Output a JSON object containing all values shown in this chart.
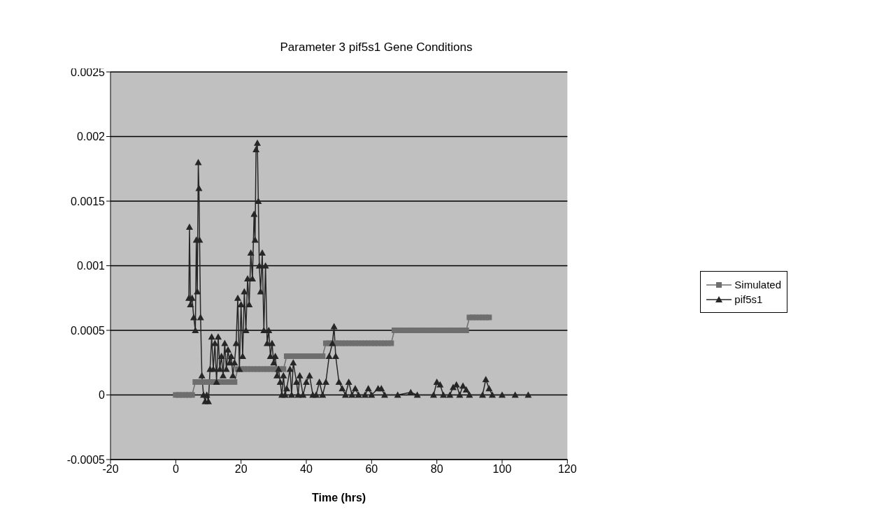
{
  "chart_data": {
    "type": "line",
    "title": "Parameter 3 pif5s1 Gene Conditions",
    "xlabel": "Time (hrs)",
    "xlim": [
      -20,
      120
    ],
    "xticks": [
      -20,
      0,
      20,
      40,
      60,
      80,
      100,
      120
    ],
    "ylim": [
      -0.0005,
      0.0025
    ],
    "yticks": [
      -0.0005,
      0,
      0.0005,
      0.001,
      0.0015,
      0.002,
      0.0025
    ],
    "grid": "y",
    "legend": "right",
    "series": [
      {
        "name": "Simulated",
        "color": "#6e6e6e",
        "marker": "square",
        "x": [
          0,
          1,
          2,
          3,
          4,
          5,
          6,
          7,
          8,
          9,
          10,
          11,
          12,
          13,
          14,
          15,
          16,
          17,
          18,
          19,
          20,
          21,
          22,
          23,
          24,
          25,
          26,
          27,
          28,
          29,
          30,
          31,
          32,
          33,
          34,
          35,
          36,
          37,
          38,
          39,
          40,
          41,
          42,
          43,
          44,
          45,
          46,
          47,
          48,
          49,
          50,
          51,
          52,
          53,
          54,
          55,
          56,
          57,
          58,
          59,
          60,
          61,
          62,
          63,
          64,
          65,
          66,
          67,
          68,
          69,
          70,
          71,
          72,
          73,
          74,
          75,
          76,
          77,
          78,
          79,
          80,
          81,
          82,
          83,
          84,
          85,
          86,
          87,
          88,
          89,
          90,
          91,
          92,
          93,
          94,
          95,
          96
        ],
        "values": [
          0,
          0,
          0,
          0,
          0,
          0,
          0.0001,
          0.0001,
          0.0001,
          0.0001,
          0.0001,
          0.0001,
          0.0001,
          0.0001,
          0.0001,
          0.0001,
          0.0001,
          0.0001,
          0.0001,
          0.0002,
          0.0002,
          0.0002,
          0.0002,
          0.0002,
          0.0002,
          0.0002,
          0.0002,
          0.0002,
          0.0002,
          0.0002,
          0.0002,
          0.0002,
          0.0002,
          0.0002,
          0.0003,
          0.0003,
          0.0003,
          0.0003,
          0.0003,
          0.0003,
          0.0003,
          0.0003,
          0.0003,
          0.0003,
          0.0003,
          0.0003,
          0.0004,
          0.0004,
          0.0004,
          0.0004,
          0.0004,
          0.0004,
          0.0004,
          0.0004,
          0.0004,
          0.0004,
          0.0004,
          0.0004,
          0.0004,
          0.0004,
          0.0004,
          0.0004,
          0.0004,
          0.0004,
          0.0004,
          0.0004,
          0.0004,
          0.0005,
          0.0005,
          0.0005,
          0.0005,
          0.0005,
          0.0005,
          0.0005,
          0.0005,
          0.0005,
          0.0005,
          0.0005,
          0.0005,
          0.0005,
          0.0005,
          0.0005,
          0.0005,
          0.0005,
          0.0005,
          0.0005,
          0.0005,
          0.0005,
          0.0005,
          0.0005,
          0.0006,
          0.0006,
          0.0006,
          0.0006,
          0.0006,
          0.0006,
          0.0006
        ]
      },
      {
        "name": "pif5s1",
        "color": "#262626",
        "marker": "triangle",
        "x": [
          4,
          4.2,
          4.5,
          5,
          5.5,
          6,
          6.3,
          6.6,
          6.9,
          7.1,
          7.3,
          7.6,
          8,
          8.5,
          9,
          9.5,
          10,
          10.5,
          11,
          11.5,
          12,
          12.5,
          13,
          13.5,
          14,
          14.5,
          15,
          15.5,
          16,
          16.5,
          17,
          17.5,
          18,
          18.5,
          19,
          19.5,
          20,
          20.5,
          21,
          21.5,
          22,
          22.5,
          23,
          23.5,
          24,
          24.3,
          24.6,
          25,
          25.3,
          25.6,
          26,
          26.5,
          27,
          27.5,
          28,
          28.5,
          29,
          29.5,
          30,
          30.5,
          31,
          31.5,
          32,
          32.5,
          33,
          33.5,
          34,
          35,
          35.5,
          36,
          37,
          37.5,
          38,
          39,
          40,
          41,
          42,
          43,
          44,
          45,
          46,
          47,
          48,
          48.5,
          49,
          50,
          51,
          52,
          53,
          54,
          55,
          56,
          58,
          59,
          60,
          62,
          63,
          64,
          68,
          72,
          74,
          79,
          80,
          81,
          82,
          84,
          85,
          86,
          87,
          88,
          89,
          90,
          94,
          95,
          96,
          97,
          100,
          104,
          108
        ],
        "values": [
          0.00075,
          0.0013,
          0.0007,
          0.00075,
          0.0006,
          0.0005,
          0.0012,
          0.0008,
          0.0018,
          0.0016,
          0.0012,
          0.0006,
          0.00015,
          0,
          -5e-05,
          0,
          -5e-05,
          0.0002,
          0.00045,
          0.0002,
          0.0004,
          0.0001,
          0.00045,
          0.0002,
          0.0003,
          0.00015,
          0.0004,
          0.0002,
          0.00035,
          0.00025,
          0.0003,
          0.00015,
          0.00025,
          0.0004,
          0.00075,
          0.0002,
          0.0007,
          0.0003,
          0.0008,
          0.0005,
          0.0009,
          0.0007,
          0.0011,
          0.0009,
          0.0014,
          0.0012,
          0.0019,
          0.00195,
          0.0015,
          0.001,
          0.0008,
          0.0011,
          0.0005,
          0.001,
          0.0004,
          0.0005,
          0.0003,
          0.0004,
          0.00025,
          0.0003,
          0.00015,
          0.0002,
          0.0001,
          0,
          0.00015,
          0,
          5e-05,
          0.0002,
          0,
          0.00025,
          0.0001,
          0,
          0.00015,
          0,
          0.0001,
          0.00015,
          0,
          0,
          0.0001,
          0,
          0.0001,
          0.0003,
          0.0004,
          0.00053,
          0.0003,
          0.0001,
          5e-05,
          0,
          0.0001,
          0,
          5e-05,
          0,
          0,
          5e-05,
          0,
          5e-05,
          5e-05,
          0,
          0,
          2e-05,
          0,
          0,
          0.0001,
          8e-05,
          0,
          0,
          6e-05,
          8e-05,
          0,
          7e-05,
          4e-05,
          0,
          0,
          0.00012,
          5e-05,
          0,
          0,
          0,
          0
        ]
      }
    ]
  }
}
